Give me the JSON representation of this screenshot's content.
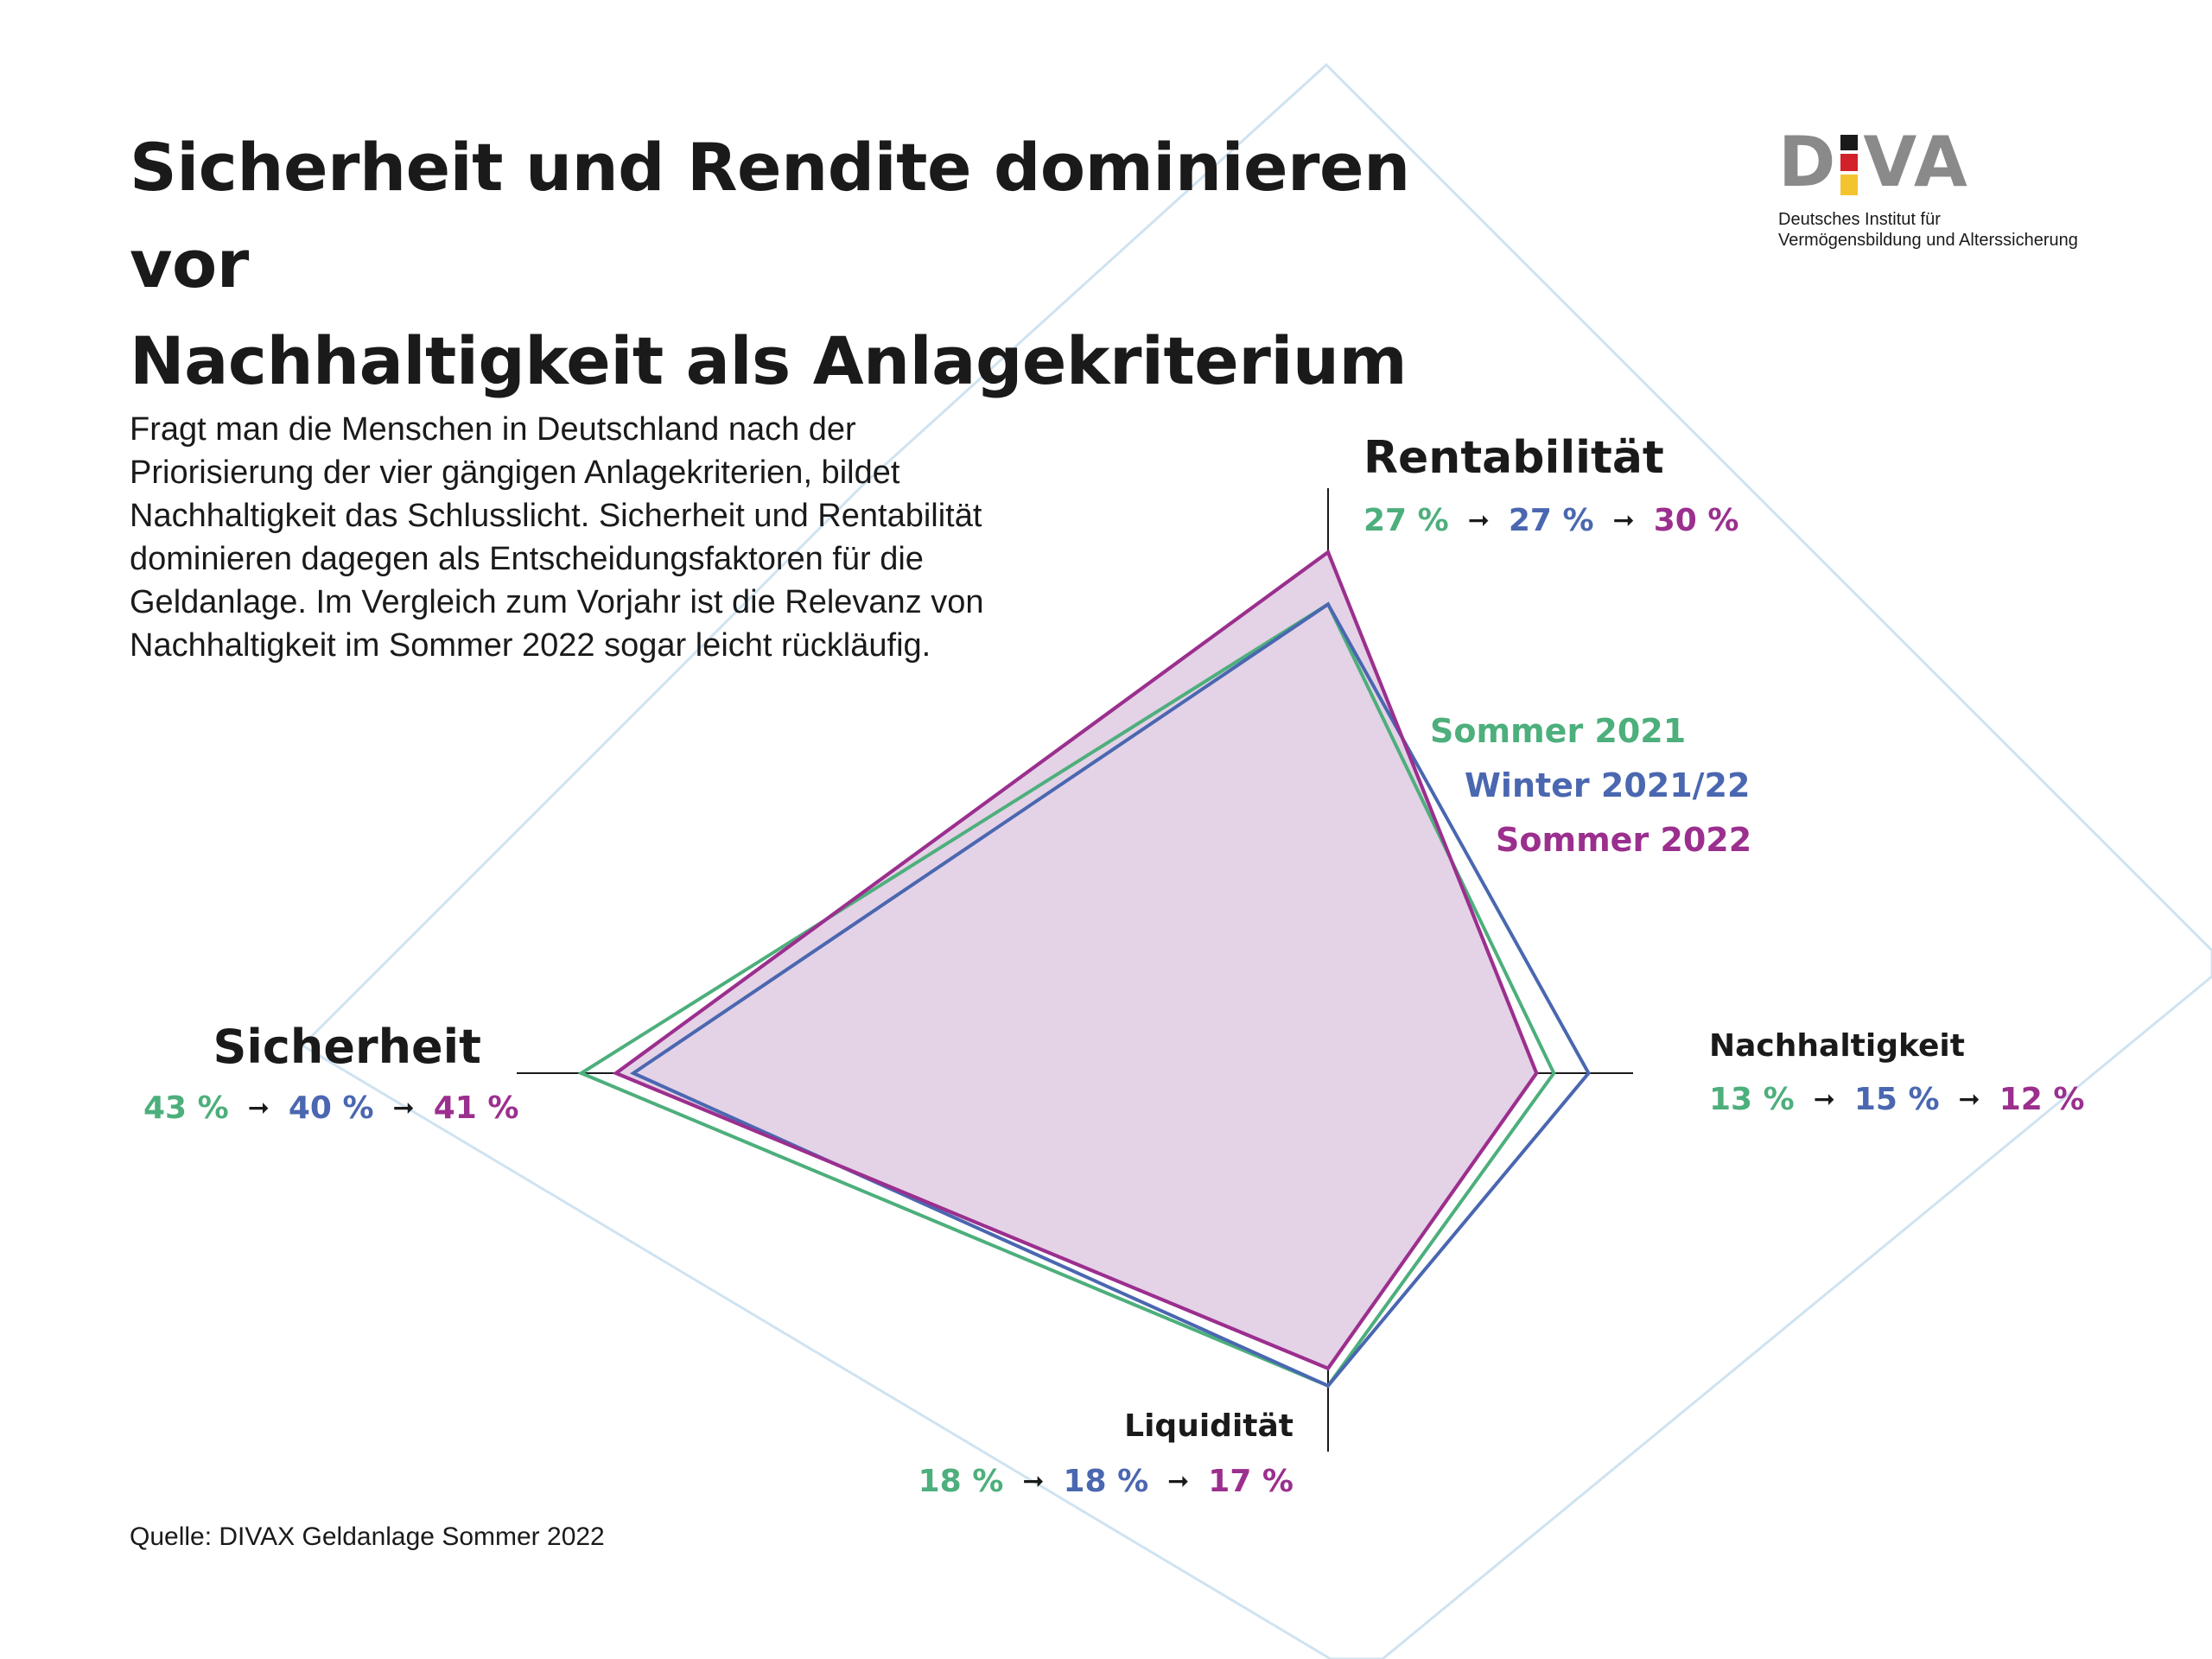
{
  "title": {
    "line1": "Sicherheit und Rendite dominieren vor",
    "line2": "Nachhaltigkeit als Anlagekriterium"
  },
  "logo": {
    "letter_d": "D",
    "letters_va": "VA",
    "subtitle_line1": "Deutsches Institut für",
    "subtitle_line2": "Vermögensbildung und Alterssicherung"
  },
  "intro_text": "Fragt man die Menschen in Deutschland nach der Priorisierung der vier gängigen Anlagekriterien, bildet Nachhaltigkeit das Schlusslicht. Sicherheit und Rentabilität dominieren dagegen als Entscheidungsfaktoren für die Geldanlage. Im Vergleich zum Vorjahr ist die Relevanz von Nachhaltigkeit im Sommer 2022 sogar leicht rückläufig.",
  "source": "Quelle: DIVAX Geldanlage Sommer 2022",
  "arrow": "➞",
  "colors": {
    "sommer_2021": "#4daf7c",
    "winter_2021_22": "#4a67b0",
    "sommer_2022": "#9b2f8e",
    "fill_2022": "#e4d2e6",
    "axis": "#1a1a1a",
    "bg_lines": "#cfe3f1"
  },
  "chart_data": {
    "type": "radar",
    "axes": [
      "Rentabilität",
      "Nachhaltigkeit",
      "Liquidität",
      "Sicherheit"
    ],
    "unit": "%",
    "series": [
      {
        "name": "Sommer 2021",
        "values": [
          27,
          13,
          18,
          43
        ],
        "labels": [
          "27 %",
          "13 %",
          "18 %",
          "43 %"
        ]
      },
      {
        "name": "Winter 2021/22",
        "values": [
          27,
          15,
          18,
          40
        ],
        "labels": [
          "27 %",
          "15 %",
          "18 %",
          "40 %"
        ]
      },
      {
        "name": "Sommer 2022",
        "values": [
          30,
          12,
          17,
          41
        ],
        "labels": [
          "30 %",
          "12 %",
          "17 %",
          "41 %"
        ]
      }
    ]
  }
}
